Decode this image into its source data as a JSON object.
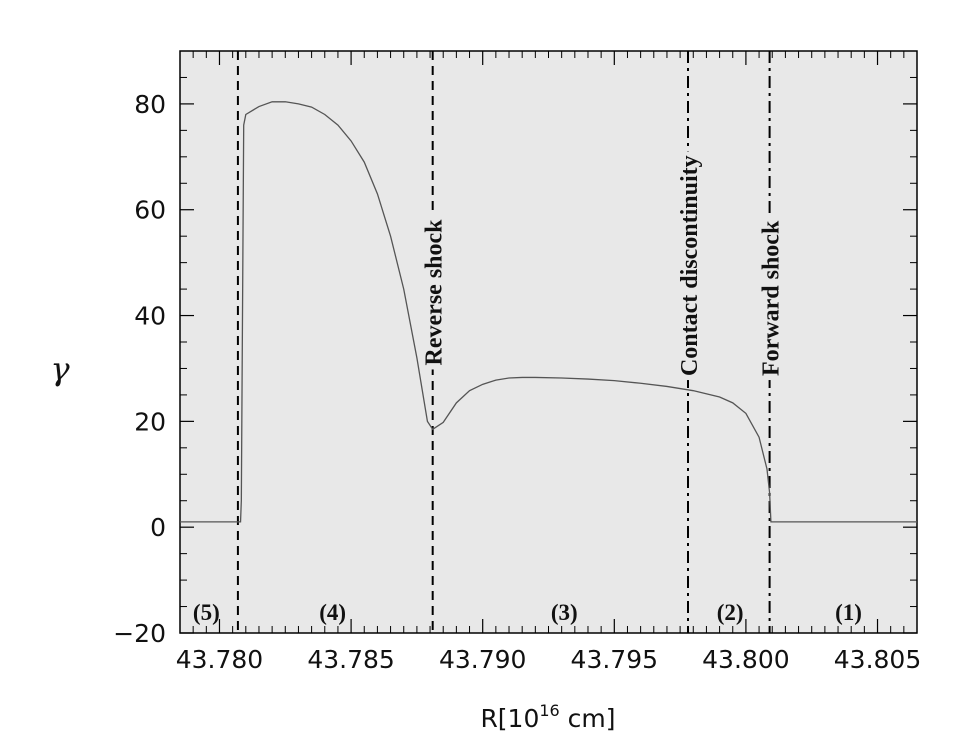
{
  "chart_data": {
    "type": "line",
    "xlabel_main": "R[10",
    "xlabel_sup": "16",
    "xlabel_end": " cm]",
    "ylabel": "γ",
    "xlim": [
      43.7785,
      43.8065
    ],
    "ylim": [
      -20,
      90
    ],
    "x_ticks": [
      43.78,
      43.785,
      43.79,
      43.795,
      43.8,
      43.805
    ],
    "x_tick_labels": [
      "43.780",
      "43.785",
      "43.790",
      "43.795",
      "43.800",
      "43.805"
    ],
    "y_ticks": [
      -20,
      0,
      20,
      40,
      60,
      80
    ],
    "y_tick_labels": [
      "−20",
      "0",
      "20",
      "40",
      "60",
      "80"
    ],
    "background": "#e8e8e8",
    "series": [
      {
        "points": [
          [
            43.7785,
            1
          ],
          [
            43.7808,
            1
          ],
          [
            43.78083,
            5
          ],
          [
            43.78092,
            76
          ],
          [
            43.781,
            78
          ],
          [
            43.7815,
            79.5
          ],
          [
            43.782,
            80.4
          ],
          [
            43.7825,
            80.4
          ],
          [
            43.783,
            80.0
          ],
          [
            43.7835,
            79.4
          ],
          [
            43.784,
            78.0
          ],
          [
            43.7845,
            76.0
          ],
          [
            43.785,
            73.0
          ],
          [
            43.7855,
            69.0
          ],
          [
            43.786,
            63.0
          ],
          [
            43.7865,
            55.0
          ],
          [
            43.787,
            45.0
          ],
          [
            43.7875,
            32.0
          ],
          [
            43.7879,
            20.0
          ],
          [
            43.7881,
            18.5
          ],
          [
            43.7885,
            19.8
          ],
          [
            43.789,
            23.5
          ],
          [
            43.7895,
            25.8
          ],
          [
            43.79,
            27.0
          ],
          [
            43.7905,
            27.8
          ],
          [
            43.791,
            28.2
          ],
          [
            43.7915,
            28.3
          ],
          [
            43.792,
            28.3
          ],
          [
            43.793,
            28.2
          ],
          [
            43.794,
            28.0
          ],
          [
            43.795,
            27.7
          ],
          [
            43.796,
            27.2
          ],
          [
            43.797,
            26.6
          ],
          [
            43.798,
            25.8
          ],
          [
            43.799,
            24.6
          ],
          [
            43.7995,
            23.5
          ],
          [
            43.8,
            21.5
          ],
          [
            43.8005,
            17.0
          ],
          [
            43.8008,
            11.0
          ],
          [
            43.8009,
            6.5
          ],
          [
            43.80095,
            1
          ],
          [
            43.8065,
            1
          ]
        ]
      }
    ],
    "vlines": [
      {
        "x": 43.7807,
        "style": "dashed"
      },
      {
        "x": 43.7881,
        "style": "dashed"
      },
      {
        "x": 43.7978,
        "style": "dashdot"
      },
      {
        "x": 43.8009,
        "style": "dashdot"
      }
    ],
    "annotations": [
      {
        "text": "Reverse shock",
        "x": 43.7881,
        "y": 30,
        "rotate": -90
      },
      {
        "text": "Contact discontinuity",
        "x": 43.7978,
        "y": 28,
        "rotate": -90
      },
      {
        "text": "Forward shock",
        "x": 43.8009,
        "y": 28,
        "rotate": -90
      }
    ],
    "regions": [
      {
        "label": "(5)",
        "x": 43.7795,
        "y": -16
      },
      {
        "label": "(4)",
        "x": 43.7843,
        "y": -16
      },
      {
        "label": "(3)",
        "x": 43.7931,
        "y": -16
      },
      {
        "label": "(2)",
        "x": 43.7994,
        "y": -16
      },
      {
        "label": "(1)",
        "x": 43.8039,
        "y": -16
      }
    ]
  }
}
